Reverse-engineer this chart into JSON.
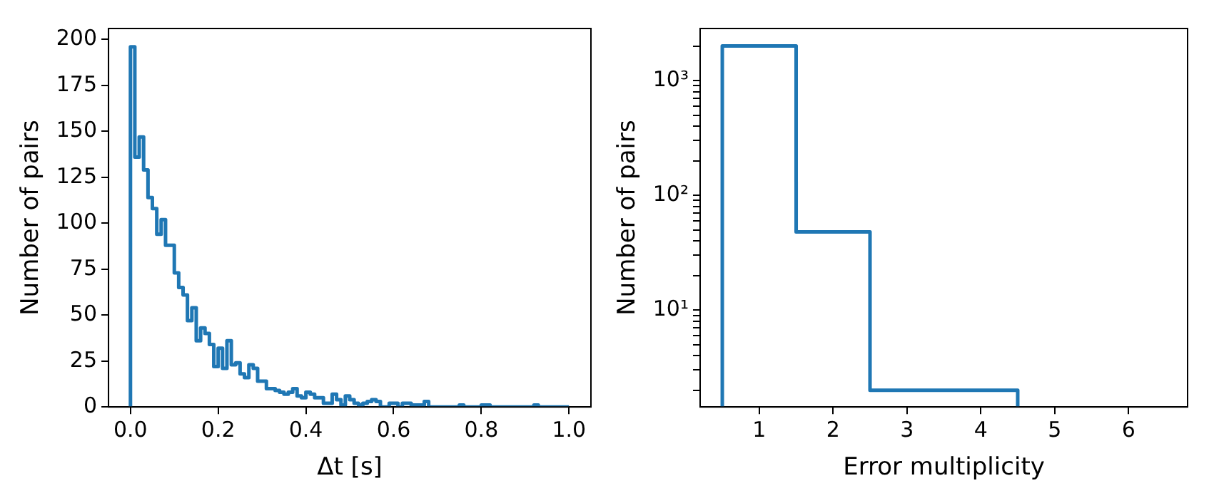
{
  "chart_data": [
    {
      "type": "histogram",
      "xlabel": "Δt [s]",
      "ylabel": "Number of pairs",
      "color": "#1f77b4",
      "bins": [
        0,
        0.01,
        0.02,
        0.03,
        0.04,
        0.05,
        0.06,
        0.07,
        0.08,
        0.09,
        0.1,
        0.11,
        0.12,
        0.13,
        0.14,
        0.15,
        0.16,
        0.17,
        0.18,
        0.19,
        0.2,
        0.21,
        0.22,
        0.23,
        0.24,
        0.25,
        0.26,
        0.27,
        0.28,
        0.29,
        0.3,
        0.31,
        0.32,
        0.33,
        0.34,
        0.35,
        0.36,
        0.37,
        0.38,
        0.39,
        0.4,
        0.41,
        0.42,
        0.43,
        0.44,
        0.45,
        0.46,
        0.47,
        0.48,
        0.49,
        0.5,
        0.51,
        0.52,
        0.53,
        0.54,
        0.55,
        0.56,
        0.57,
        0.58,
        0.59,
        0.6,
        0.61,
        0.62,
        0.63,
        0.64,
        0.65,
        0.66,
        0.67,
        0.68,
        0.69,
        0.7,
        0.71,
        0.72,
        0.73,
        0.74,
        0.75,
        0.76,
        0.77,
        0.78,
        0.79,
        0.8,
        0.81,
        0.82,
        0.83,
        0.84,
        0.85,
        0.86,
        0.87,
        0.88,
        0.89,
        0.9,
        0.91,
        0.92,
        0.93,
        0.94,
        0.95,
        0.96,
        0.97,
        0.98,
        0.99,
        1
      ],
      "values": [
        196,
        136,
        147,
        129,
        114,
        108,
        94,
        102,
        88,
        88,
        73,
        65,
        61,
        47,
        54,
        36,
        43,
        40,
        34,
        22,
        32,
        21,
        36,
        23,
        24,
        18,
        16,
        23,
        21,
        14,
        14,
        10,
        10,
        9,
        8,
        7,
        8,
        10,
        6,
        5,
        8,
        7,
        5,
        5,
        2,
        2,
        7,
        4,
        1,
        6,
        4,
        2,
        1,
        2,
        3,
        4,
        3,
        0,
        0,
        2,
        2,
        0,
        2,
        2,
        1,
        1,
        1,
        3,
        0,
        0,
        0,
        0,
        0,
        0,
        0,
        1,
        0,
        0,
        0,
        0,
        1,
        1,
        0,
        0,
        0,
        0,
        0,
        0,
        0,
        0,
        0,
        0,
        1,
        0,
        0,
        0,
        0,
        0,
        0,
        0
      ],
      "xlim": [
        -0.05,
        1.05
      ],
      "xticks": [
        {
          "value": 0,
          "label": "0.0"
        },
        {
          "value": 0.2,
          "label": "0.2"
        },
        {
          "value": 0.4,
          "label": "0.4"
        },
        {
          "value": 0.6,
          "label": "0.6"
        },
        {
          "value": 0.8,
          "label": "0.8"
        },
        {
          "value": 1,
          "label": "1.0"
        }
      ],
      "ylim": [
        0,
        206
      ],
      "yticks": [
        0,
        25,
        50,
        75,
        100,
        125,
        150,
        175,
        200
      ]
    },
    {
      "type": "histogram",
      "xlabel": "Error multiplicity",
      "ylabel": "Number of pairs",
      "color": "#1f77b4",
      "log": "y",
      "bins": [
        0.5,
        1.5,
        2.5,
        3.5,
        4.5
      ],
      "values": [
        2000,
        48,
        2,
        2
      ],
      "xlim": [
        0.2,
        6.8
      ],
      "xticks": [
        1,
        2,
        3,
        4,
        5,
        6
      ],
      "ylim": [
        1.43,
        2840
      ],
      "yticks": [
        {
          "value": 2,
          "label": null
        },
        {
          "value": 3,
          "label": null
        },
        {
          "value": 4,
          "label": null
        },
        {
          "value": 5,
          "label": null
        },
        {
          "value": 6,
          "label": null
        },
        {
          "value": 7,
          "label": null
        },
        {
          "value": 8,
          "label": null
        },
        {
          "value": 9,
          "label": null
        },
        {
          "value": 10,
          "label": "10¹"
        },
        {
          "value": 20,
          "label": null
        },
        {
          "value": 30,
          "label": null
        },
        {
          "value": 40,
          "label": null
        },
        {
          "value": 50,
          "label": null
        },
        {
          "value": 60,
          "label": null
        },
        {
          "value": 70,
          "label": null
        },
        {
          "value": 80,
          "label": null
        },
        {
          "value": 90,
          "label": null
        },
        {
          "value": 100,
          "label": "10²"
        },
        {
          "value": 200,
          "label": null
        },
        {
          "value": 300,
          "label": null
        },
        {
          "value": 400,
          "label": null
        },
        {
          "value": 500,
          "label": null
        },
        {
          "value": 600,
          "label": null
        },
        {
          "value": 700,
          "label": null
        },
        {
          "value": 800,
          "label": null
        },
        {
          "value": 900,
          "label": null
        },
        {
          "value": 1000,
          "label": "10³"
        },
        {
          "value": 2000,
          "label": null
        }
      ]
    }
  ]
}
